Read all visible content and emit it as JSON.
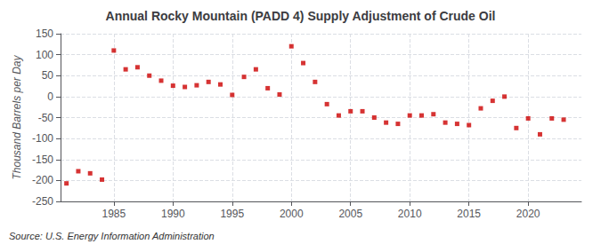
{
  "chart_data": {
    "type": "scatter",
    "title": "Annual Rocky Mountain (PADD 4) Supply Adjustment of Crude Oil",
    "ylabel": "Thousand Barrels per Day",
    "annotation": "Source: U.S. Energy Information Administration",
    "x": [
      1981,
      1982,
      1983,
      1984,
      1985,
      1986,
      1987,
      1988,
      1989,
      1990,
      1991,
      1992,
      1993,
      1994,
      1995,
      1996,
      1997,
      1998,
      1999,
      2000,
      2001,
      2002,
      2003,
      2004,
      2005,
      2006,
      2007,
      2008,
      2009,
      2010,
      2011,
      2012,
      2013,
      2014,
      2015,
      2016,
      2017,
      2018,
      2019,
      2020,
      2021,
      2022,
      2023
    ],
    "values": [
      -207,
      -178,
      -183,
      -198,
      110,
      65,
      70,
      50,
      38,
      26,
      23,
      27,
      35,
      29,
      4,
      47,
      65,
      20,
      5,
      120,
      80,
      35,
      -18,
      -45,
      -35,
      -35,
      -50,
      -62,
      -65,
      -45,
      -45,
      -42,
      -62,
      -65,
      -68,
      -28,
      -10,
      0,
      -75,
      -52,
      -90,
      -52,
      -55
    ],
    "color": "#cc0000",
    "marker": "square",
    "xlim": [
      1980.5,
      2024.5
    ],
    "xticks": [
      1985,
      1990,
      1995,
      2000,
      2005,
      2010,
      2015,
      2020
    ],
    "ylim": [
      -250,
      150
    ],
    "yticks": [
      -250,
      -200,
      -150,
      -100,
      -50,
      0,
      50,
      100,
      150
    ],
    "grid": true
  }
}
